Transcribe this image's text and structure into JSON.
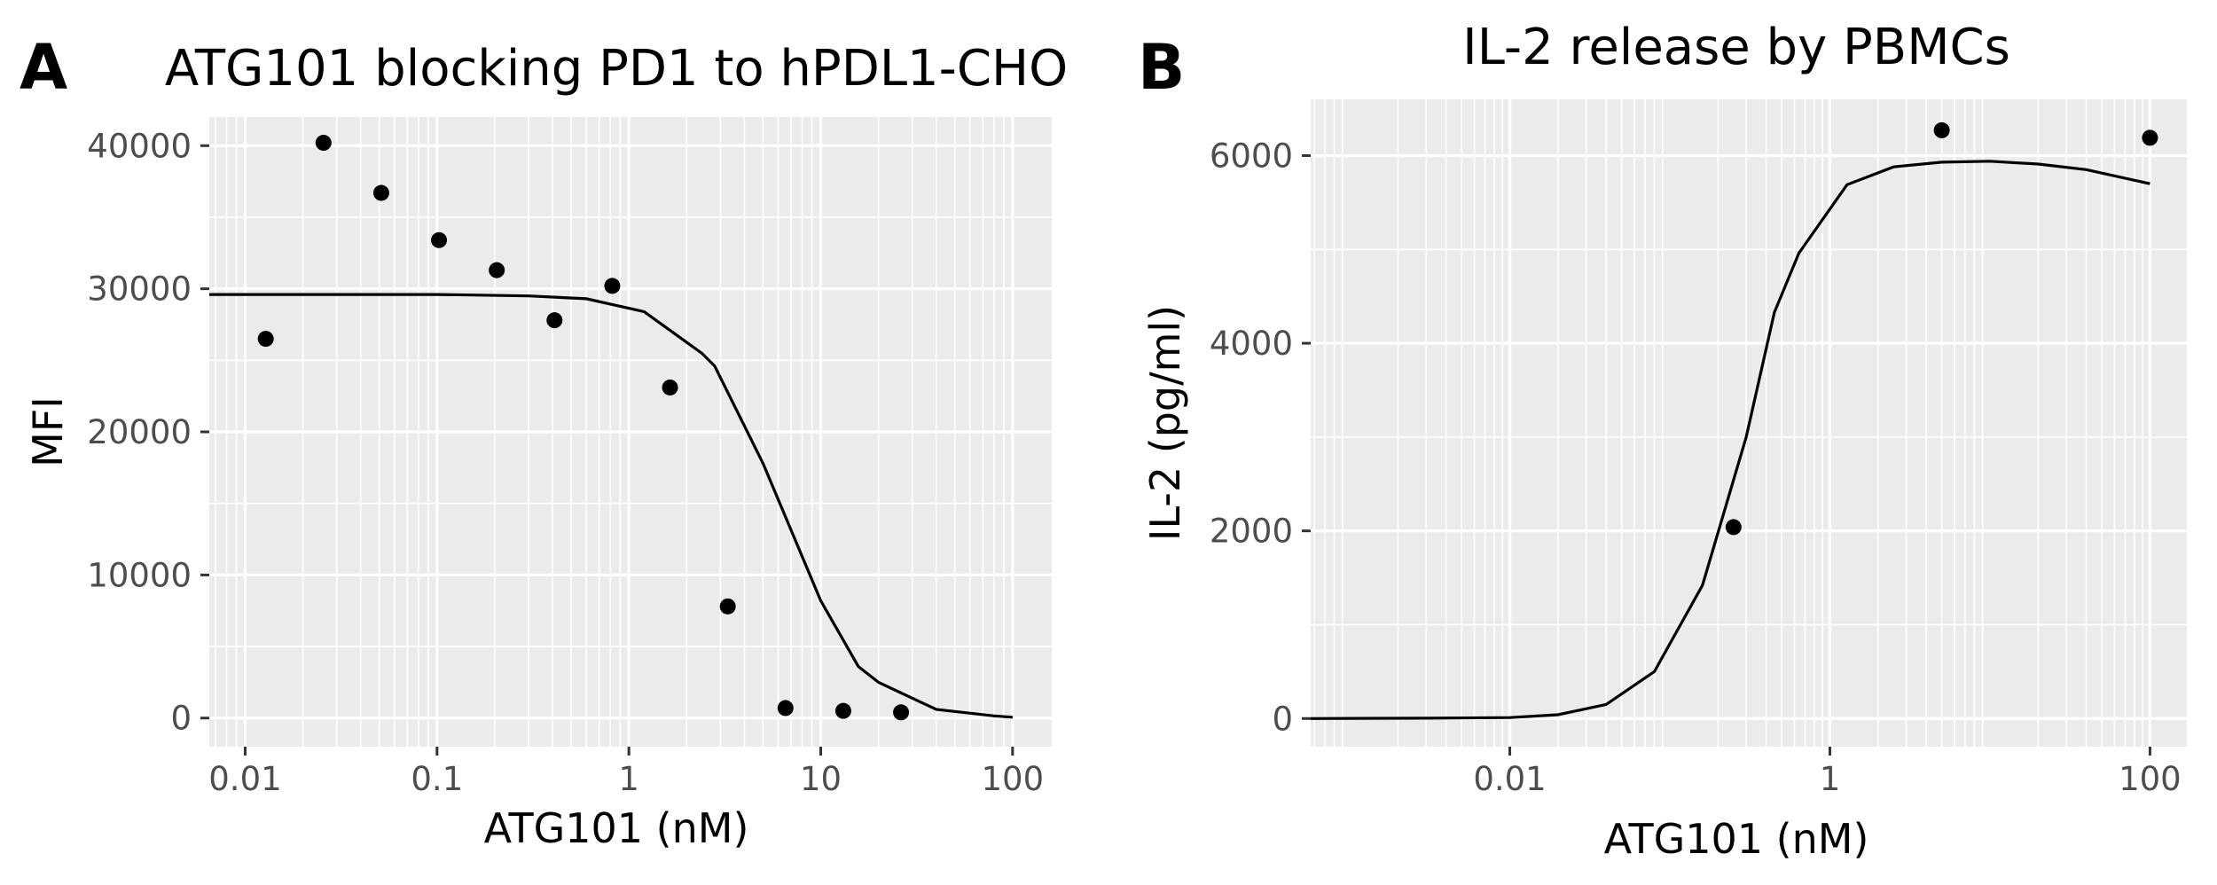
{
  "chart_data": [
    {
      "panel": "A",
      "type": "scatter",
      "title": "ATG101 blocking PD1 to hPDL1-CHO",
      "xlabel": "ATG101 (nM)",
      "ylabel": "MFI",
      "xscale": "log10",
      "xlim": [
        0.0065,
        160
      ],
      "ylim": [
        -2000,
        42000
      ],
      "xticks": [
        {
          "value": 0.01,
          "label": "0.01"
        },
        {
          "value": 0.1,
          "label": "0.1"
        },
        {
          "value": 1,
          "label": "1"
        },
        {
          "value": 10,
          "label": "10"
        },
        {
          "value": 100,
          "label": "100"
        }
      ],
      "yticks": [
        {
          "value": 0,
          "label": "0"
        },
        {
          "value": 10000,
          "label": "10000"
        },
        {
          "value": 20000,
          "label": "20000"
        },
        {
          "value": 30000,
          "label": "30000"
        },
        {
          "value": 40000,
          "label": "40000"
        }
      ],
      "grid": true,
      "points": [
        {
          "x": 0.0128,
          "y": 26500
        },
        {
          "x": 0.0256,
          "y": 40200
        },
        {
          "x": 0.0512,
          "y": 36700
        },
        {
          "x": 0.1024,
          "y": 33400
        },
        {
          "x": 0.2048,
          "y": 31300
        },
        {
          "x": 0.4096,
          "y": 27800
        },
        {
          "x": 0.8192,
          "y": 30200
        },
        {
          "x": 1.6384,
          "y": 23100
        },
        {
          "x": 3.2768,
          "y": 7800
        },
        {
          "x": 6.5536,
          "y": 700
        },
        {
          "x": 13.1072,
          "y": 500
        },
        {
          "x": 26.2144,
          "y": 400
        }
      ],
      "fit": [
        {
          "x": 0.0065,
          "y": 29600
        },
        {
          "x": 0.1,
          "y": 29600
        },
        {
          "x": 0.3,
          "y": 29500
        },
        {
          "x": 0.6,
          "y": 29300
        },
        {
          "x": 1.2,
          "y": 28400
        },
        {
          "x": 2.4,
          "y": 25500
        },
        {
          "x": 2.8,
          "y": 24600
        },
        {
          "x": 5,
          "y": 17800
        },
        {
          "x": 10,
          "y": 8200
        },
        {
          "x": 15.7,
          "y": 3600
        },
        {
          "x": 20,
          "y": 2500
        },
        {
          "x": 40,
          "y": 600
        },
        {
          "x": 80,
          "y": 150
        },
        {
          "x": 100,
          "y": 60
        }
      ]
    },
    {
      "panel": "B",
      "type": "scatter",
      "title": "IL-2 release by PBMCs",
      "xlabel": "ATG101 (nM)",
      "ylabel": "IL-2 (pg/ml)",
      "xscale": "log10",
      "xlim": [
        0.00057,
        170
      ],
      "ylim": [
        -300,
        6600
      ],
      "xticks": [
        {
          "value": 0.01,
          "label": "0.01"
        },
        {
          "value": 1,
          "label": "1"
        },
        {
          "value": 100,
          "label": "100"
        }
      ],
      "yticks": [
        {
          "value": 0,
          "label": "0"
        },
        {
          "value": 2000,
          "label": "2000"
        },
        {
          "value": 4000,
          "label": "4000"
        },
        {
          "value": 6000,
          "label": "6000"
        }
      ],
      "grid": true,
      "points": [
        {
          "x": 0.25,
          "y": 2040
        },
        {
          "x": 5,
          "y": 6270
        },
        {
          "x": 100,
          "y": 6190
        }
      ],
      "fit": [
        {
          "x": 0.00057,
          "y": 0
        },
        {
          "x": 0.003,
          "y": 3
        },
        {
          "x": 0.01,
          "y": 10
        },
        {
          "x": 0.02,
          "y": 40
        },
        {
          "x": 0.04,
          "y": 150
        },
        {
          "x": 0.08,
          "y": 500
        },
        {
          "x": 0.16,
          "y": 1420
        },
        {
          "x": 0.3,
          "y": 3000
        },
        {
          "x": 0.45,
          "y": 4330
        },
        {
          "x": 0.64,
          "y": 4960
        },
        {
          "x": 1.28,
          "y": 5690
        },
        {
          "x": 2.5,
          "y": 5880
        },
        {
          "x": 5,
          "y": 5930
        },
        {
          "x": 10,
          "y": 5940
        },
        {
          "x": 20,
          "y": 5910
        },
        {
          "x": 40,
          "y": 5850
        },
        {
          "x": 100,
          "y": 5700
        }
      ]
    }
  ]
}
